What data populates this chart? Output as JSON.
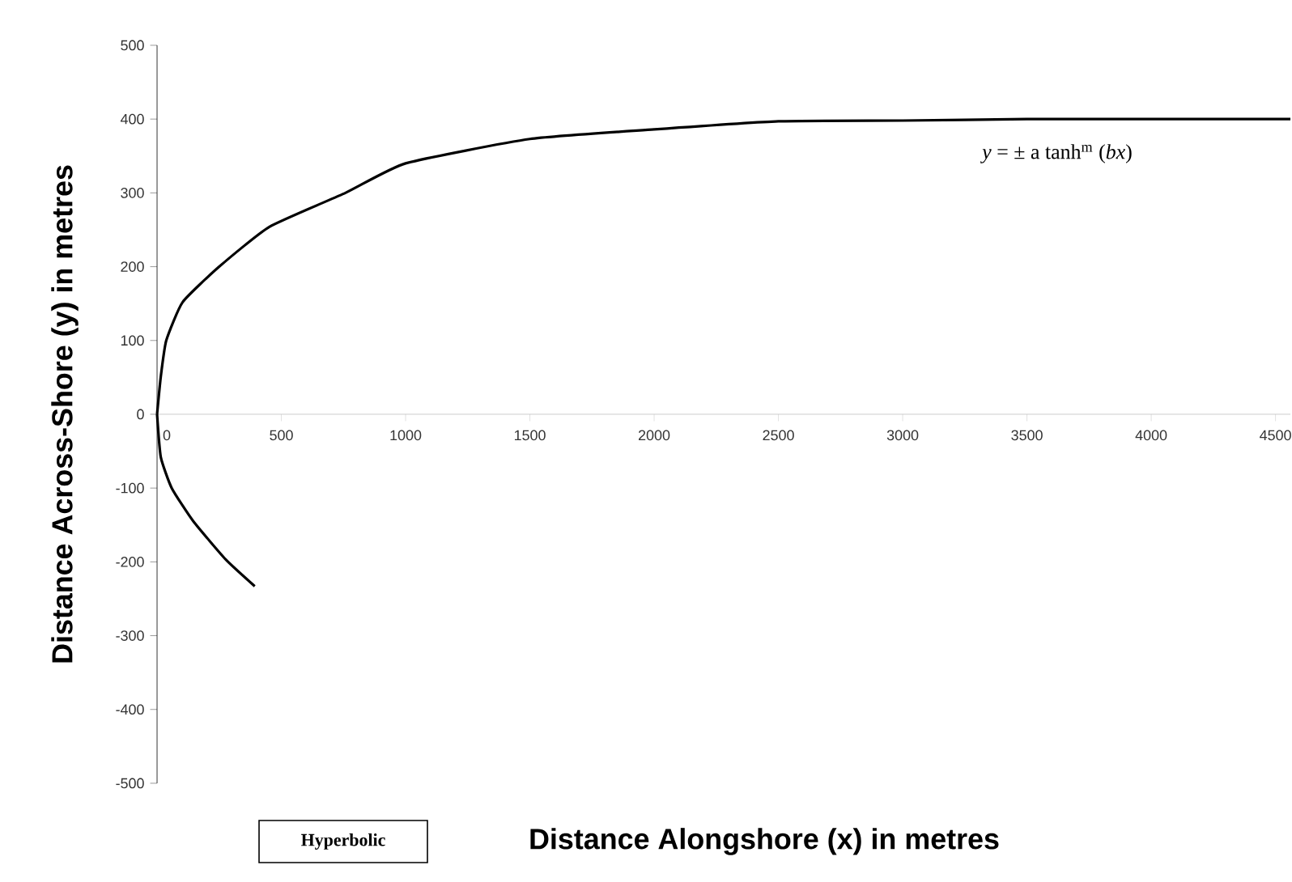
{
  "chart_data": {
    "type": "line",
    "xlabel": "Distance Alongshore (x) in metres",
    "ylabel": "Distance Across-Shore (y) in metres",
    "annotations": [
      "*y* = ± a tanh$^{m}$ (*bx*)",
      "Hyperbolic"
    ],
    "xlim": [
      0,
      4560
    ],
    "ylim": [
      -500,
      500
    ],
    "xticks": [
      0,
      500,
      1000,
      1500,
      2000,
      2500,
      3000,
      3500,
      4000,
      4500
    ],
    "yticks": [
      -500,
      -400,
      -300,
      -200,
      -100,
      0,
      100,
      200,
      300,
      400,
      500
    ],
    "series": [
      {
        "color": "#000000",
        "x": [
          0,
          15,
          37,
          103,
          250,
          452,
          758,
          1000,
          1500,
          2000,
          2500,
          3000,
          3500,
          4000,
          4560
        ],
        "values": [
          0,
          51,
          100,
          152,
          200,
          254,
          300,
          340,
          373,
          386,
          397,
          398,
          400,
          400,
          400
        ]
      },
      {
        "color": "#000000",
        "x": [
          0,
          15,
          59,
          146,
          277,
          393
        ],
        "values": [
          0,
          -58,
          -100,
          -145,
          -197,
          -233
        ]
      }
    ]
  }
}
